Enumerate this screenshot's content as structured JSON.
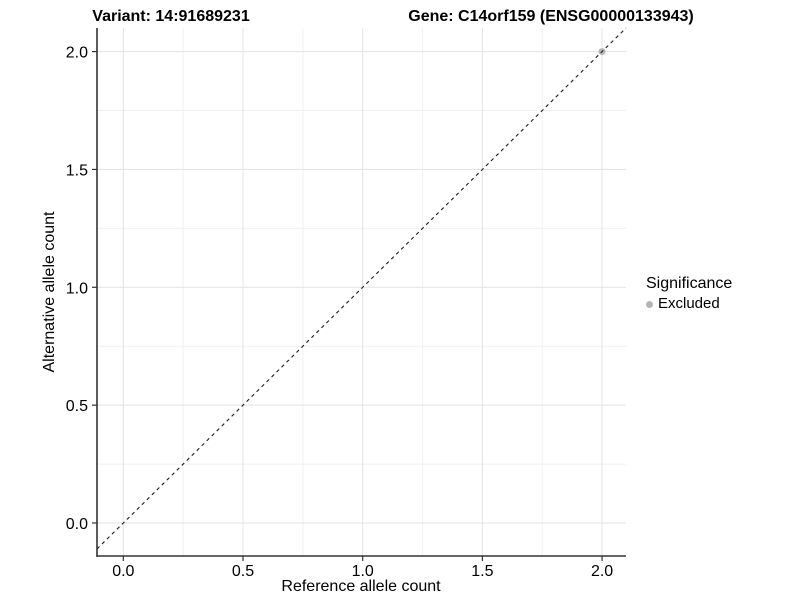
{
  "chart_data": {
    "type": "scatter",
    "title_left": "Variant: 14:91689231",
    "title_right": "Gene: C14orf159 (ENSG00000133943)",
    "xlabel": "Reference allele count",
    "ylabel": "Alternative allele count",
    "xlim": [
      -0.11,
      2.1
    ],
    "ylim": [
      -0.14,
      2.1
    ],
    "x_ticks": [
      0.0,
      0.5,
      1.0,
      1.5,
      2.0
    ],
    "y_ticks": [
      0.0,
      0.5,
      1.0,
      1.5,
      2.0
    ],
    "x_tick_labels": [
      "0.0",
      "0.5",
      "1.0",
      "1.5",
      "2.0"
    ],
    "y_tick_labels": [
      "0.0",
      "0.5",
      "1.0",
      "1.5",
      "2.0"
    ],
    "minor_ticks": [
      0.25,
      0.75,
      1.25,
      1.75
    ],
    "grid": true,
    "reference_line": {
      "type": "identity",
      "style": "dashed",
      "color": "#1a1a1a"
    },
    "series": [
      {
        "name": "Excluded",
        "color": "#b5b5b5",
        "points": [
          {
            "x": 2.0,
            "y": 2.0
          }
        ]
      }
    ],
    "legend": {
      "title": "Significance",
      "position": "right",
      "items": [
        {
          "label": "Excluded",
          "color": "#b5b5b5"
        }
      ]
    }
  },
  "colors": {
    "background": "#ffffff",
    "grid_major": "#e3e3e3",
    "grid_minor": "#f1f1f1",
    "axis_line": "#333333",
    "tick": "#333333",
    "text": "#000000",
    "point_excluded": "#b5b5b5"
  }
}
